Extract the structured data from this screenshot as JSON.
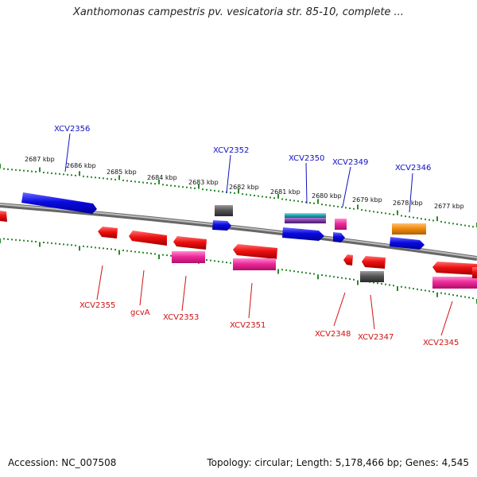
{
  "title": "Xanthomonas campestris pv. vesicatoria str. 85-10, complete ...",
  "footer": {
    "accession": "Accession: NC_007508",
    "summary": "Topology: circular; Length: 5,178,466 bp; Genes: 4,545"
  },
  "scale_labels": [
    "2687 kbp",
    "2686 kbp",
    "2685 kbp",
    "2684 kbp",
    "2683 kbp",
    "2682 kbp",
    "2681 kbp",
    "2680 kbp",
    "2679 kbp",
    "2678 kbp",
    "2677 kbp"
  ],
  "top_labels": [
    "XCV2356",
    "XCV2352",
    "XCV2350",
    "XCV2349",
    "XCV2346"
  ],
  "bottom_labels": [
    "XCV2355",
    "gcvA",
    "XCV2353",
    "XCV2351",
    "XCV2348",
    "XCV2347",
    "XCV2345"
  ],
  "colors": {
    "forward_label": "#1010c0",
    "reverse_label": "#d01010",
    "blue_feature": "#0a0ae0",
    "red_feature": "#ee1010",
    "pink_feature": "#ee2a9a",
    "gray_feature": "#555555",
    "orange_feature": "#f08c10",
    "teal_feature": "#20a0b0",
    "purple_feature": "#7a3aa0",
    "tick_color": "#2a8a2a",
    "backbone": "#8a8a8a"
  }
}
